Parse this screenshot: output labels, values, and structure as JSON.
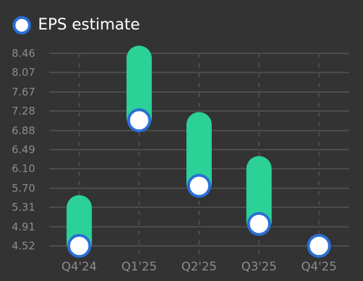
{
  "legend": {
    "label": "EPS estimate"
  },
  "colors": {
    "background": "#333333",
    "grid": "#4d4d4d",
    "bar": "#2bd196",
    "marker_fill": "#ffffff",
    "marker_stroke": "#2a6fd6",
    "tick_text": "#8c8c8c"
  },
  "chart_data": {
    "type": "range-bar",
    "categories": [
      "Q4'24",
      "Q1'25",
      "Q2'25",
      "Q3'25",
      "Q4'25"
    ],
    "series": [
      {
        "name": "EPS estimate",
        "low": [
          4.52,
          7.09,
          5.75,
          4.97,
          4.52
        ],
        "high": [
          5.3,
          8.36,
          7.0,
          6.1,
          null
        ],
        "point": [
          4.52,
          7.09,
          5.75,
          4.97,
          4.52
        ]
      }
    ],
    "yticks": [
      "4.52",
      "4.91",
      "5.31",
      "5.70",
      "6.10",
      "6.49",
      "6.88",
      "7.28",
      "7.67",
      "8.07",
      "8.46"
    ],
    "ylim": [
      4.52,
      8.46
    ],
    "grid": true,
    "legend_position": "top-left"
  }
}
